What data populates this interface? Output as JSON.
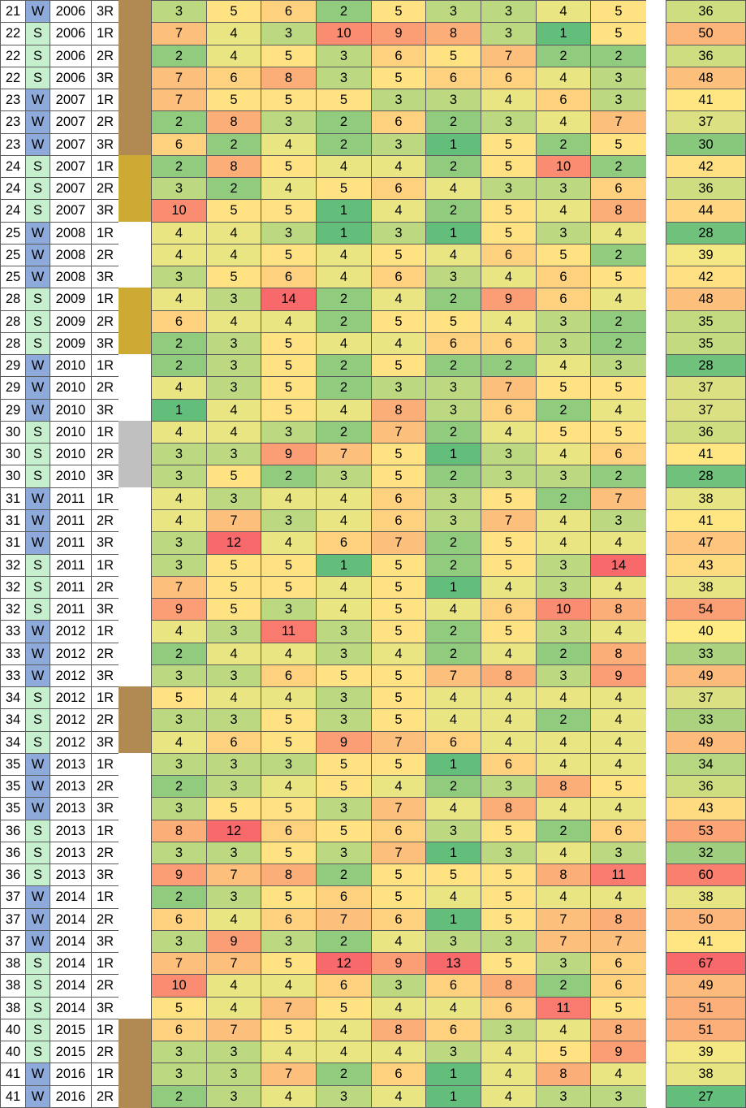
{
  "colors": {
    "season_W": "#8eaadb",
    "season_S": "#c6efce",
    "band_brown": "#b08a52",
    "band_gold": "#ccaa33",
    "band_gray": "#c0c0c0",
    "scale_low": "#63be7b",
    "scale_mid": "#ffeb84",
    "scale_high": "#f8696b"
  },
  "rows": [
    {
      "n": "21",
      "s": "W",
      "y": "2006",
      "r": "3R",
      "band": "brown",
      "v": [
        "3",
        "5",
        "6",
        "2",
        "5",
        "3",
        "3",
        "4",
        "5"
      ],
      "t": "36"
    },
    {
      "n": "22",
      "s": "S",
      "y": "2006",
      "r": "1R",
      "band": "brown",
      "v": [
        "7",
        "4",
        "3",
        "10",
        "9",
        "8",
        "3",
        "1",
        "5"
      ],
      "t": "50"
    },
    {
      "n": "22",
      "s": "S",
      "y": "2006",
      "r": "2R",
      "band": "brown",
      "v": [
        "2",
        "4",
        "5",
        "3",
        "6",
        "5",
        "7",
        "2",
        "2"
      ],
      "t": "36"
    },
    {
      "n": "22",
      "s": "S",
      "y": "2006",
      "r": "3R",
      "band": "brown",
      "v": [
        "7",
        "6",
        "8",
        "3",
        "5",
        "6",
        "6",
        "4",
        "3"
      ],
      "t": "48"
    },
    {
      "n": "23",
      "s": "W",
      "y": "2007",
      "r": "1R",
      "band": "brown",
      "v": [
        "7",
        "5",
        "5",
        "5",
        "3",
        "3",
        "4",
        "6",
        "3"
      ],
      "t": "41"
    },
    {
      "n": "23",
      "s": "W",
      "y": "2007",
      "r": "2R",
      "band": "brown",
      "v": [
        "2",
        "8",
        "3",
        "2",
        "6",
        "2",
        "3",
        "4",
        "7"
      ],
      "t": "37"
    },
    {
      "n": "23",
      "s": "W",
      "y": "2007",
      "r": "3R",
      "band": "brown",
      "v": [
        "6",
        "2",
        "4",
        "2",
        "3",
        "1",
        "5",
        "2",
        "5"
      ],
      "t": "30"
    },
    {
      "n": "24",
      "s": "S",
      "y": "2007",
      "r": "1R",
      "band": "gold",
      "v": [
        "2",
        "8",
        "5",
        "4",
        "4",
        "2",
        "5",
        "10",
        "2"
      ],
      "t": "42"
    },
    {
      "n": "24",
      "s": "S",
      "y": "2007",
      "r": "2R",
      "band": "gold",
      "v": [
        "3",
        "2",
        "4",
        "5",
        "6",
        "4",
        "3",
        "3",
        "6"
      ],
      "t": "36"
    },
    {
      "n": "24",
      "s": "S",
      "y": "2007",
      "r": "3R",
      "band": "gold",
      "v": [
        "10",
        "5",
        "5",
        "1",
        "4",
        "2",
        "5",
        "4",
        "8"
      ],
      "t": "44"
    },
    {
      "n": "25",
      "s": "W",
      "y": "2008",
      "r": "1R",
      "band": "none",
      "v": [
        "4",
        "4",
        "3",
        "1",
        "3",
        "1",
        "5",
        "3",
        "4"
      ],
      "t": "28"
    },
    {
      "n": "25",
      "s": "W",
      "y": "2008",
      "r": "2R",
      "band": "none",
      "v": [
        "4",
        "4",
        "5",
        "4",
        "5",
        "4",
        "6",
        "5",
        "2"
      ],
      "t": "39"
    },
    {
      "n": "25",
      "s": "W",
      "y": "2008",
      "r": "3R",
      "band": "none",
      "v": [
        "3",
        "5",
        "6",
        "4",
        "6",
        "3",
        "4",
        "6",
        "5"
      ],
      "t": "42"
    },
    {
      "n": "28",
      "s": "S",
      "y": "2009",
      "r": "1R",
      "band": "gold",
      "v": [
        "4",
        "3",
        "14",
        "2",
        "4",
        "2",
        "9",
        "6",
        "4"
      ],
      "t": "48"
    },
    {
      "n": "28",
      "s": "S",
      "y": "2009",
      "r": "2R",
      "band": "gold",
      "v": [
        "6",
        "4",
        "4",
        "2",
        "5",
        "5",
        "4",
        "3",
        "2"
      ],
      "t": "35"
    },
    {
      "n": "28",
      "s": "S",
      "y": "2009",
      "r": "3R",
      "band": "gold",
      "v": [
        "2",
        "3",
        "5",
        "4",
        "4",
        "6",
        "6",
        "3",
        "2"
      ],
      "t": "35"
    },
    {
      "n": "29",
      "s": "W",
      "y": "2010",
      "r": "1R",
      "band": "none",
      "v": [
        "2",
        "3",
        "5",
        "2",
        "5",
        "2",
        "2",
        "4",
        "3"
      ],
      "t": "28"
    },
    {
      "n": "29",
      "s": "W",
      "y": "2010",
      "r": "2R",
      "band": "none",
      "v": [
        "4",
        "3",
        "5",
        "2",
        "3",
        "3",
        "7",
        "5",
        "5"
      ],
      "t": "37"
    },
    {
      "n": "29",
      "s": "W",
      "y": "2010",
      "r": "3R",
      "band": "none",
      "v": [
        "1",
        "4",
        "5",
        "4",
        "8",
        "3",
        "6",
        "2",
        "4"
      ],
      "t": "37"
    },
    {
      "n": "30",
      "s": "S",
      "y": "2010",
      "r": "1R",
      "band": "gray",
      "v": [
        "4",
        "4",
        "3",
        "2",
        "7",
        "2",
        "4",
        "5",
        "5"
      ],
      "t": "36"
    },
    {
      "n": "30",
      "s": "S",
      "y": "2010",
      "r": "2R",
      "band": "gray",
      "v": [
        "3",
        "3",
        "9",
        "7",
        "5",
        "1",
        "3",
        "4",
        "6"
      ],
      "t": "41"
    },
    {
      "n": "30",
      "s": "S",
      "y": "2010",
      "r": "3R",
      "band": "gray",
      "v": [
        "3",
        "5",
        "2",
        "3",
        "5",
        "2",
        "3",
        "3",
        "2"
      ],
      "t": "28"
    },
    {
      "n": "31",
      "s": "W",
      "y": "2011",
      "r": "1R",
      "band": "none",
      "v": [
        "4",
        "3",
        "4",
        "4",
        "6",
        "3",
        "5",
        "2",
        "7"
      ],
      "t": "38"
    },
    {
      "n": "31",
      "s": "W",
      "y": "2011",
      "r": "2R",
      "band": "none",
      "v": [
        "4",
        "7",
        "3",
        "4",
        "6",
        "3",
        "7",
        "4",
        "3"
      ],
      "t": "41"
    },
    {
      "n": "31",
      "s": "W",
      "y": "2011",
      "r": "3R",
      "band": "none",
      "v": [
        "3",
        "12",
        "4",
        "6",
        "7",
        "2",
        "5",
        "4",
        "4"
      ],
      "t": "47"
    },
    {
      "n": "32",
      "s": "S",
      "y": "2011",
      "r": "1R",
      "band": "none",
      "v": [
        "3",
        "5",
        "5",
        "1",
        "5",
        "2",
        "5",
        "3",
        "14"
      ],
      "t": "43"
    },
    {
      "n": "32",
      "s": "S",
      "y": "2011",
      "r": "2R",
      "band": "none",
      "v": [
        "7",
        "5",
        "5",
        "4",
        "5",
        "1",
        "4",
        "3",
        "4"
      ],
      "t": "38"
    },
    {
      "n": "32",
      "s": "S",
      "y": "2011",
      "r": "3R",
      "band": "none",
      "v": [
        "9",
        "5",
        "3",
        "4",
        "5",
        "4",
        "6",
        "10",
        "8"
      ],
      "t": "54"
    },
    {
      "n": "33",
      "s": "W",
      "y": "2012",
      "r": "1R",
      "band": "none",
      "v": [
        "4",
        "3",
        "11",
        "3",
        "5",
        "2",
        "5",
        "3",
        "4"
      ],
      "t": "40"
    },
    {
      "n": "33",
      "s": "W",
      "y": "2012",
      "r": "2R",
      "band": "none",
      "v": [
        "2",
        "4",
        "4",
        "3",
        "4",
        "2",
        "4",
        "2",
        "8"
      ],
      "t": "33"
    },
    {
      "n": "33",
      "s": "W",
      "y": "2012",
      "r": "3R",
      "band": "none",
      "v": [
        "3",
        "3",
        "6",
        "5",
        "5",
        "7",
        "8",
        "3",
        "9"
      ],
      "t": "49"
    },
    {
      "n": "34",
      "s": "S",
      "y": "2012",
      "r": "1R",
      "band": "brown",
      "v": [
        "5",
        "4",
        "4",
        "3",
        "5",
        "4",
        "4",
        "4",
        "4"
      ],
      "t": "37"
    },
    {
      "n": "34",
      "s": "S",
      "y": "2012",
      "r": "2R",
      "band": "brown",
      "v": [
        "3",
        "3",
        "5",
        "3",
        "5",
        "4",
        "4",
        "2",
        "4"
      ],
      "t": "33"
    },
    {
      "n": "34",
      "s": "S",
      "y": "2012",
      "r": "3R",
      "band": "brown",
      "v": [
        "4",
        "6",
        "5",
        "9",
        "7",
        "6",
        "4",
        "4",
        "4"
      ],
      "t": "49"
    },
    {
      "n": "35",
      "s": "W",
      "y": "2013",
      "r": "1R",
      "band": "none",
      "v": [
        "3",
        "3",
        "3",
        "5",
        "5",
        "1",
        "6",
        "4",
        "4"
      ],
      "t": "34"
    },
    {
      "n": "35",
      "s": "W",
      "y": "2013",
      "r": "2R",
      "band": "none",
      "v": [
        "2",
        "3",
        "4",
        "5",
        "4",
        "2",
        "3",
        "8",
        "5"
      ],
      "t": "36"
    },
    {
      "n": "35",
      "s": "W",
      "y": "2013",
      "r": "3R",
      "band": "none",
      "v": [
        "3",
        "5",
        "5",
        "3",
        "7",
        "4",
        "8",
        "4",
        "4"
      ],
      "t": "43"
    },
    {
      "n": "36",
      "s": "S",
      "y": "2013",
      "r": "1R",
      "band": "none",
      "v": [
        "8",
        "12",
        "6",
        "5",
        "6",
        "3",
        "5",
        "2",
        "6"
      ],
      "t": "53"
    },
    {
      "n": "36",
      "s": "S",
      "y": "2013",
      "r": "2R",
      "band": "none",
      "v": [
        "3",
        "3",
        "5",
        "3",
        "7",
        "1",
        "3",
        "4",
        "3"
      ],
      "t": "32"
    },
    {
      "n": "36",
      "s": "S",
      "y": "2013",
      "r": "3R",
      "band": "none",
      "v": [
        "9",
        "7",
        "8",
        "2",
        "5",
        "5",
        "5",
        "8",
        "11"
      ],
      "t": "60"
    },
    {
      "n": "37",
      "s": "W",
      "y": "2014",
      "r": "1R",
      "band": "none",
      "v": [
        "2",
        "3",
        "5",
        "6",
        "5",
        "4",
        "5",
        "4",
        "4"
      ],
      "t": "38"
    },
    {
      "n": "37",
      "s": "W",
      "y": "2014",
      "r": "2R",
      "band": "none",
      "v": [
        "6",
        "4",
        "6",
        "7",
        "6",
        "1",
        "5",
        "7",
        "8"
      ],
      "t": "50"
    },
    {
      "n": "37",
      "s": "W",
      "y": "2014",
      "r": "3R",
      "band": "none",
      "v": [
        "3",
        "9",
        "3",
        "2",
        "4",
        "3",
        "3",
        "7",
        "7"
      ],
      "t": "41"
    },
    {
      "n": "38",
      "s": "S",
      "y": "2014",
      "r": "1R",
      "band": "none",
      "v": [
        "7",
        "7",
        "5",
        "12",
        "9",
        "13",
        "5",
        "3",
        "6"
      ],
      "t": "67"
    },
    {
      "n": "38",
      "s": "S",
      "y": "2014",
      "r": "2R",
      "band": "none",
      "v": [
        "10",
        "4",
        "4",
        "6",
        "3",
        "6",
        "8",
        "2",
        "6"
      ],
      "t": "49"
    },
    {
      "n": "38",
      "s": "S",
      "y": "2014",
      "r": "3R",
      "band": "none",
      "v": [
        "5",
        "4",
        "7",
        "5",
        "4",
        "4",
        "6",
        "11",
        "5"
      ],
      "t": "51"
    },
    {
      "n": "40",
      "s": "S",
      "y": "2015",
      "r": "1R",
      "band": "brown",
      "v": [
        "6",
        "7",
        "5",
        "4",
        "8",
        "6",
        "3",
        "4",
        "8"
      ],
      "t": "51"
    },
    {
      "n": "40",
      "s": "S",
      "y": "2015",
      "r": "2R",
      "band": "brown",
      "v": [
        "3",
        "3",
        "4",
        "4",
        "4",
        "3",
        "4",
        "5",
        "9"
      ],
      "t": "39"
    },
    {
      "n": "41",
      "s": "W",
      "y": "2016",
      "r": "1R",
      "band": "brown",
      "v": [
        "3",
        "3",
        "7",
        "2",
        "6",
        "1",
        "4",
        "8",
        "4"
      ],
      "t": "38"
    },
    {
      "n": "41",
      "s": "W",
      "y": "2016",
      "r": "2R",
      "band": "brown",
      "v": [
        "2",
        "3",
        "4",
        "3",
        "4",
        "1",
        "4",
        "3",
        "3"
      ],
      "t": "27"
    }
  ]
}
